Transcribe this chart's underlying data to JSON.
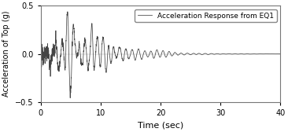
{
  "title": "",
  "xlabel": "Time (sec)",
  "ylabel": "Acceleration of Top (g)",
  "legend_label": "Acceleration Response from EQ1",
  "xlim": [
    0,
    40
  ],
  "ylim": [
    -0.5,
    0.5
  ],
  "yticks": [
    -0.5,
    0,
    0.5
  ],
  "xticks": [
    0,
    10,
    20,
    30,
    40
  ],
  "line_color": "#444444",
  "background_color": "#ffffff",
  "line_width": 0.55,
  "dt": 0.02,
  "duration": 40.0,
  "figsize": [
    3.66,
    1.68
  ],
  "dpi": 100
}
